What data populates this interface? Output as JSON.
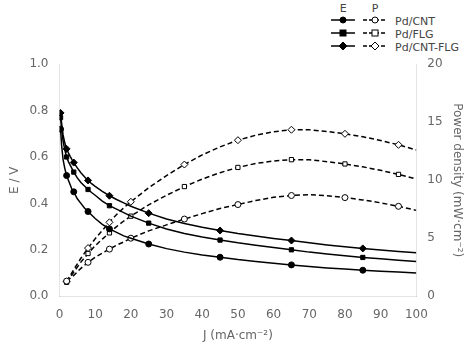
{
  "chart_data": {
    "type": "line",
    "xlabel": "J (mA·cm⁻²)",
    "ylabel": "E / V",
    "y2label": "Power density (mW·cm⁻²)",
    "xlim": [
      0,
      100
    ],
    "xticks": [
      0,
      10,
      20,
      30,
      40,
      50,
      60,
      70,
      80,
      90,
      100
    ],
    "ylim": [
      0,
      1.0
    ],
    "yticks": [
      {
        "value": 0,
        "label": "0.0"
      },
      0.2,
      0.4,
      0.6,
      0.8,
      {
        "value": 1.0,
        "label": "1.0"
      }
    ],
    "y2lim": [
      0,
      20
    ],
    "y2ticks": [
      0,
      5,
      10,
      15,
      20
    ],
    "grid": false,
    "legend": "top right",
    "annotations": [
      "E",
      "P"
    ],
    "series": [
      {
        "name": "Pd/CNT",
        "axis": "y",
        "color": "#000000",
        "marker": "circle",
        "line_style": "solid",
        "x": [
          0.3,
          0.6,
          1.0,
          1.5,
          2.0,
          2.5,
          3.0,
          3.5,
          4.0,
          5.0,
          6.0,
          7.0,
          8.0,
          9.0,
          10.0,
          12.0,
          14.0,
          16.0,
          18.0,
          20.0,
          25.0,
          30.0,
          35.0,
          40.0,
          45.0,
          50.0,
          55.0,
          60.0,
          65.0,
          70.0,
          75.0,
          80.0,
          85.0,
          90.0,
          95.0,
          100.0
        ],
        "values": [
          0.72,
          0.65,
          0.59,
          0.55,
          0.52,
          0.5,
          0.48,
          0.46,
          0.45,
          0.42,
          0.4,
          0.38,
          0.365,
          0.35,
          0.335,
          0.31,
          0.29,
          0.275,
          0.26,
          0.25,
          0.225,
          0.205,
          0.19,
          0.178,
          0.168,
          0.158,
          0.15,
          0.142,
          0.135,
          0.128,
          0.122,
          0.117,
          0.112,
          0.108,
          0.104,
          0.1
        ]
      },
      {
        "name": "Pd/FLG",
        "axis": "y",
        "color": "#000000",
        "marker": "square",
        "line_style": "solid",
        "x": [
          0.3,
          0.6,
          1.0,
          1.5,
          2.0,
          2.5,
          3.0,
          3.5,
          4.0,
          5.0,
          6.0,
          7.0,
          8.0,
          9.0,
          10.0,
          12.0,
          14.0,
          16.0,
          18.0,
          20.0,
          25.0,
          30.0,
          35.0,
          40.0,
          45.0,
          50.0,
          55.0,
          60.0,
          65.0,
          70.0,
          75.0,
          80.0,
          85.0,
          90.0,
          95.0,
          100.0
        ],
        "values": [
          0.77,
          0.72,
          0.67,
          0.63,
          0.6,
          0.58,
          0.565,
          0.55,
          0.535,
          0.51,
          0.49,
          0.475,
          0.46,
          0.447,
          0.435,
          0.41,
          0.39,
          0.375,
          0.36,
          0.345,
          0.315,
          0.29,
          0.27,
          0.255,
          0.242,
          0.23,
          0.22,
          0.21,
          0.2,
          0.19,
          0.182,
          0.174,
          0.167,
          0.161,
          0.155,
          0.15
        ]
      },
      {
        "name": "Pd/CNT-FLG",
        "axis": "y",
        "color": "#000000",
        "marker": "diamond",
        "line_style": "solid",
        "x": [
          0.3,
          0.6,
          1.0,
          1.5,
          2.0,
          2.5,
          3.0,
          3.5,
          4.0,
          5.0,
          6.0,
          7.0,
          8.0,
          9.0,
          10.0,
          12.0,
          14.0,
          16.0,
          18.0,
          20.0,
          25.0,
          30.0,
          35.0,
          40.0,
          45.0,
          50.0,
          55.0,
          60.0,
          65.0,
          70.0,
          75.0,
          80.0,
          85.0,
          90.0,
          95.0,
          100.0
        ],
        "values": [
          0.79,
          0.745,
          0.695,
          0.66,
          0.635,
          0.618,
          0.603,
          0.589,
          0.576,
          0.553,
          0.532,
          0.515,
          0.499,
          0.485,
          0.473,
          0.452,
          0.433,
          0.417,
          0.402,
          0.388,
          0.358,
          0.333,
          0.313,
          0.297,
          0.283,
          0.27,
          0.259,
          0.249,
          0.24,
          0.23,
          0.221,
          0.213,
          0.206,
          0.199,
          0.193,
          0.187
        ]
      },
      {
        "name": "Pd/CNT",
        "axis": "y2",
        "color": "#000000",
        "marker": "open_circle",
        "line_style": "dashed",
        "x": [
          2,
          4,
          6,
          8,
          10,
          12,
          14,
          16,
          18,
          20,
          25,
          30,
          35,
          40,
          45,
          50,
          55,
          60,
          65,
          70,
          75,
          80,
          85,
          90,
          95,
          100
        ],
        "values": [
          1.3,
          1.8,
          2.4,
          2.92,
          3.35,
          3.72,
          4.06,
          4.4,
          4.68,
          5.0,
          5.63,
          6.15,
          6.65,
          7.12,
          7.56,
          7.9,
          8.25,
          8.52,
          8.68,
          8.75,
          8.66,
          8.5,
          8.3,
          8.05,
          7.75,
          7.4
        ]
      },
      {
        "name": "Pd/FLG",
        "axis": "y2",
        "color": "#000000",
        "marker": "open_square",
        "line_style": "dashed",
        "x": [
          2,
          4,
          6,
          8,
          10,
          12,
          14,
          16,
          18,
          20,
          25,
          30,
          35,
          40,
          45,
          50,
          55,
          60,
          65,
          70,
          75,
          80,
          85,
          90,
          95,
          100
        ],
        "values": [
          1.2,
          2.08,
          2.94,
          3.68,
          4.35,
          4.92,
          5.46,
          6.0,
          6.48,
          6.9,
          7.88,
          8.7,
          9.45,
          10.1,
          10.65,
          11.1,
          11.44,
          11.66,
          11.77,
          11.76,
          11.6,
          11.4,
          11.15,
          10.85,
          10.5,
          10.1
        ]
      },
      {
        "name": "Pd/CNT-FLG",
        "axis": "y2",
        "color": "#000000",
        "marker": "open_diamond",
        "line_style": "dashed",
        "x": [
          2,
          4,
          6,
          8,
          10,
          12,
          14,
          16,
          18,
          20,
          25,
          30,
          35,
          40,
          45,
          50,
          55,
          60,
          65,
          70,
          75,
          80,
          85,
          90,
          95,
          100
        ],
        "values": [
          1.27,
          2.3,
          3.27,
          4.15,
          4.95,
          5.67,
          6.37,
          7.04,
          7.62,
          8.14,
          9.35,
          10.4,
          11.35,
          12.18,
          12.87,
          13.45,
          13.88,
          14.18,
          14.35,
          14.35,
          14.2,
          14.0,
          13.75,
          13.42,
          13.05,
          12.6
        ]
      }
    ]
  }
}
